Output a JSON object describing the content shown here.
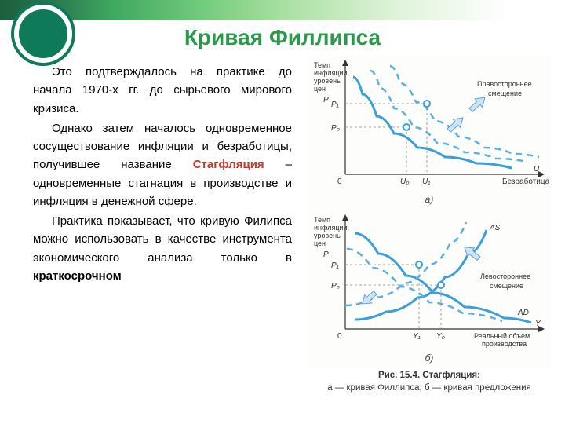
{
  "title": "Кривая Филлипса",
  "paragraphs": {
    "p1": "Это подтверждалось на практике до начала 1970-х гг. до сырьевого мирового кризиса.",
    "p2a": "Однако затем началось одновременное сосуществование инфляции и безработицы, получившее название ",
    "term": "Стагфляция",
    "p2b": " – одновременные стагнация в производстве и инфляция в денежной сфере.",
    "p3a": "Практика показывает, что кривую Филипса можно использовать в качестве инструмента экономического анализа только в ",
    "p3bold": "краткосрочном"
  },
  "chartA": {
    "type": "line",
    "y_axis_label_1": "Темп",
    "y_axis_label_2": "инфляции,",
    "y_axis_label_3": "уровень",
    "y_axis_label_4": "цен",
    "y_axis_symbol": "P",
    "x_axis_label": "Безработица",
    "x_axis_symbol": "U",
    "origin_label": "0",
    "y_ticks": [
      "P₁",
      "P₀"
    ],
    "x_ticks": [
      "U₀",
      "U₁"
    ],
    "shift_label": "Правостороннее\nсмещение",
    "sub_label": "а)",
    "curve_color": "#3a9fd8",
    "dash_color": "#5ab0e0",
    "axis_color": "#333333",
    "point_fill": "#ffffff",
    "point_stroke": "#3a9fd8",
    "arrow_fill": "#cfe3f7",
    "arrow_stroke": "#5aa3d8",
    "background": "#fdfdfc",
    "solid_curve": [
      [
        58,
        28
      ],
      [
        70,
        50
      ],
      [
        88,
        78
      ],
      [
        110,
        100
      ],
      [
        140,
        118
      ],
      [
        175,
        130
      ],
      [
        215,
        138
      ],
      [
        260,
        144
      ]
    ],
    "dash_curves": [
      [
        [
          80,
          20
        ],
        [
          92,
          42
        ],
        [
          110,
          68
        ],
        [
          135,
          92
        ],
        [
          165,
          112
        ],
        [
          200,
          124
        ],
        [
          240,
          132
        ],
        [
          280,
          136
        ]
      ],
      [
        [
          105,
          14
        ],
        [
          118,
          36
        ],
        [
          138,
          60
        ],
        [
          162,
          84
        ],
        [
          192,
          104
        ],
        [
          225,
          118
        ],
        [
          262,
          126
        ],
        [
          295,
          130
        ]
      ]
    ],
    "p1_y": 62,
    "p0_y": 92,
    "u0_x": 126,
    "u1_x": 152,
    "arrows": [
      [
        180,
        96,
        198,
        80
      ],
      [
        208,
        70,
        226,
        54
      ]
    ]
  },
  "chartB": {
    "type": "line",
    "y_axis_label_1": "Темп",
    "y_axis_label_2": "инфляции,",
    "y_axis_label_3": "уровень",
    "y_axis_label_4": "цен",
    "y_axis_symbol": "P",
    "x_axis_label_1": "Реальный объем",
    "x_axis_label_2": "производства",
    "x_axis_symbol": "Y",
    "origin_label": "0",
    "y_ticks": [
      "P₁",
      "P₀"
    ],
    "x_ticks": [
      "Y₁",
      "Y₀"
    ],
    "shift_label": "Левостороннее\nсмещение",
    "curve_as_label": "AS",
    "curve_ad_label": "AD",
    "sub_label": "б)",
    "curve_color": "#3a9fd8",
    "dash_color": "#5ab0e0",
    "axis_color": "#333333",
    "as_curve": [
      [
        60,
        140
      ],
      [
        100,
        130
      ],
      [
        140,
        112
      ],
      [
        175,
        86
      ],
      [
        205,
        56
      ],
      [
        228,
        26
      ]
    ],
    "ad_curve": [
      [
        60,
        30
      ],
      [
        90,
        56
      ],
      [
        125,
        84
      ],
      [
        160,
        106
      ],
      [
        200,
        124
      ],
      [
        250,
        138
      ],
      [
        285,
        144
      ]
    ],
    "as_dash": [
      [
        48,
        122
      ],
      [
        85,
        112
      ],
      [
        122,
        94
      ],
      [
        155,
        70
      ],
      [
        182,
        42
      ],
      [
        202,
        16
      ]
    ],
    "ad_dash": [
      [
        50,
        50
      ],
      [
        82,
        74
      ],
      [
        118,
        98
      ],
      [
        155,
        118
      ],
      [
        198,
        132
      ],
      [
        248,
        142
      ]
    ],
    "p1_y": 70,
    "p0_y": 96,
    "y1_x": 142,
    "y0_x": 170,
    "arrows": [
      [
        218,
        62,
        200,
        48
      ],
      [
        86,
        106,
        70,
        120
      ]
    ]
  },
  "figure_caption": {
    "title": "Рис. 15.4. Стагфляция:",
    "line": "а — кривая Филлипса; б — кривая предложения"
  },
  "colors": {
    "title": "#2a9a4a",
    "term": "#c0392b",
    "text": "#000000",
    "deco_dark": "#0f7a5a"
  }
}
